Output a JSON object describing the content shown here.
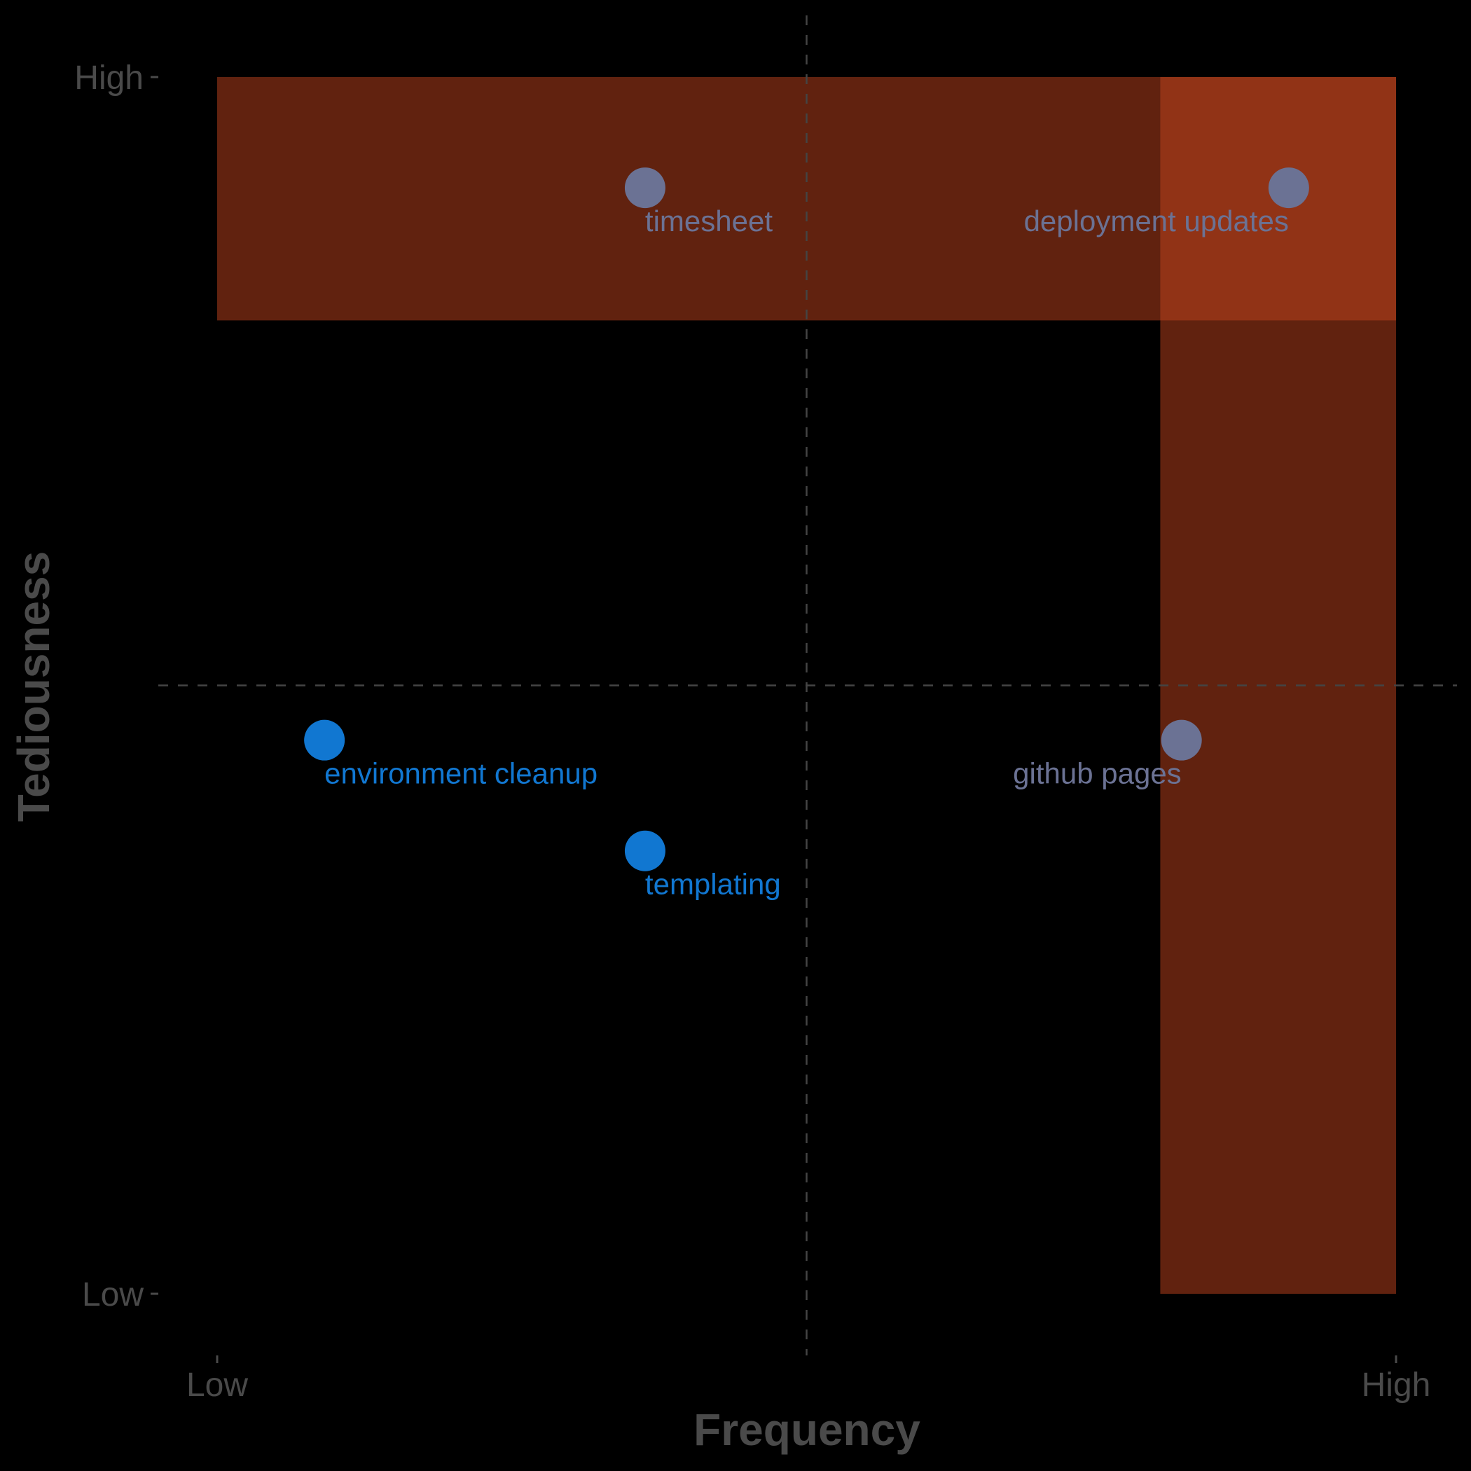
{
  "chart_data": {
    "type": "scatter",
    "xlabel": "Frequency",
    "ylabel": "Tediousness",
    "xlim": [
      0,
      10
    ],
    "ylim": [
      0,
      10
    ],
    "x_ticks": [
      {
        "value": 0,
        "label": "Low"
      },
      {
        "value": 10,
        "label": "High"
      }
    ],
    "y_ticks": [
      {
        "value": 0,
        "label": "Low"
      },
      {
        "value": 10,
        "label": "High"
      }
    ],
    "reference_lines": {
      "x": 5,
      "y": 5,
      "style": "dashed",
      "color": "#444444"
    },
    "highlight_regions": [
      {
        "name": "high-tediousness-band",
        "x": [
          0,
          10
        ],
        "y": [
          8,
          10
        ],
        "color": "#c1441d",
        "opacity": 0.5
      },
      {
        "name": "high-frequency-band",
        "x": [
          8,
          10
        ],
        "y": [
          0,
          10
        ],
        "color": "#c1441d",
        "opacity": 0.5
      }
    ],
    "points": [
      {
        "label": "timesheet",
        "x": 3.63,
        "y": 9.09,
        "color": "#6b7294"
      },
      {
        "label": "deployment updates",
        "x": 9.09,
        "y": 9.09,
        "color": "#6b7294"
      },
      {
        "label": "environment cleanup",
        "x": 0.91,
        "y": 4.55,
        "color": "#1177d1"
      },
      {
        "label": "github pages",
        "x": 8.18,
        "y": 4.55,
        "color": "#6b7294"
      },
      {
        "label": "templating",
        "x": 3.63,
        "y": 3.64,
        "color": "#1177d1"
      }
    ],
    "grid": false,
    "background": "#000000"
  }
}
